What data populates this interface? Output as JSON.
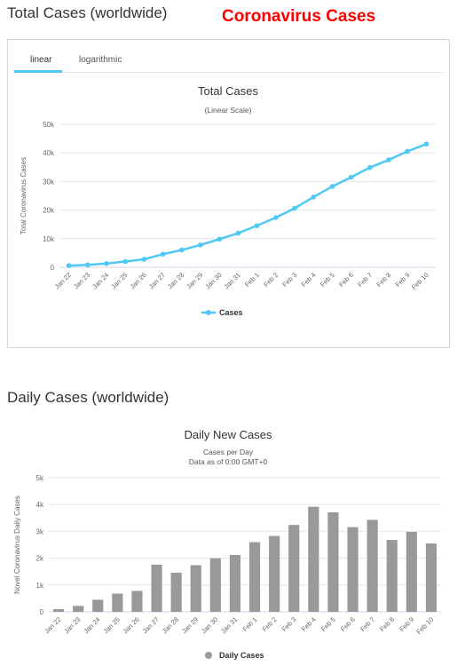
{
  "page": {
    "total_section_title": "Total Cases (worldwide)",
    "brand_title": "Coronavirus Cases",
    "daily_section_title": "Daily Cases (worldwide)",
    "tabs": [
      "linear",
      "logarithmic"
    ],
    "active_tab": "linear"
  },
  "chart_data": [
    {
      "type": "line",
      "title": "Total Cases",
      "subtitle": "(Linear Scale)",
      "xlabel": "",
      "ylabel": "Total Coronavirus Cases",
      "categories": [
        "Jan 22",
        "Jan 23",
        "Jan 24",
        "Jan 25",
        "Jan 26",
        "Jan 27",
        "Jan 28",
        "Jan 29",
        "Jan 30",
        "Jan 31",
        "Feb 1",
        "Feb 2",
        "Feb 3",
        "Feb 4",
        "Feb 5",
        "Feb 6",
        "Feb 7",
        "Feb 8",
        "Feb 9",
        "Feb 10"
      ],
      "series": [
        {
          "name": "Cases",
          "color": "#4ec8f5",
          "values": [
            580,
            845,
            1317,
            2015,
            2800,
            4581,
            6058,
            7813,
            9823,
            11950,
            14553,
            17391,
            20630,
            24554,
            28276,
            31481,
            34886,
            37558,
            40554,
            43103
          ]
        }
      ],
      "ylim": [
        0,
        50000
      ],
      "yticks": [
        "0",
        "10k",
        "20k",
        "30k",
        "40k",
        "50k"
      ],
      "grid": true,
      "legend": "bottom-center"
    },
    {
      "type": "bar",
      "title": "Daily New Cases",
      "subtitle_lines": [
        "Cases per Day",
        "Data as of 0:00 GMT+0"
      ],
      "xlabel": "",
      "ylabel": "Novel Coronavirus Daily Cases",
      "categories": [
        "Jan 22",
        "Jan 23",
        "Jan 24",
        "Jan 25",
        "Jan 26",
        "Jan 27",
        "Jan 28",
        "Jan 29",
        "Jan 30",
        "Jan 31",
        "Feb 1",
        "Feb 2",
        "Feb 3",
        "Feb 4",
        "Feb 5",
        "Feb 6",
        "Feb 7",
        "Feb 8",
        "Feb 9",
        "Feb 10"
      ],
      "series": [
        {
          "name": "Daily Cases",
          "color": "#999999",
          "values": [
            100,
            220,
            450,
            680,
            780,
            1760,
            1460,
            1740,
            2000,
            2120,
            2600,
            2830,
            3240,
            3920,
            3710,
            3160,
            3430,
            2680,
            2980,
            2550
          ]
        }
      ],
      "ylim": [
        0,
        5000
      ],
      "yticks": [
        "0",
        "1k",
        "2k",
        "3k",
        "4k",
        "5k"
      ],
      "grid": true,
      "legend": "bottom-center"
    }
  ]
}
